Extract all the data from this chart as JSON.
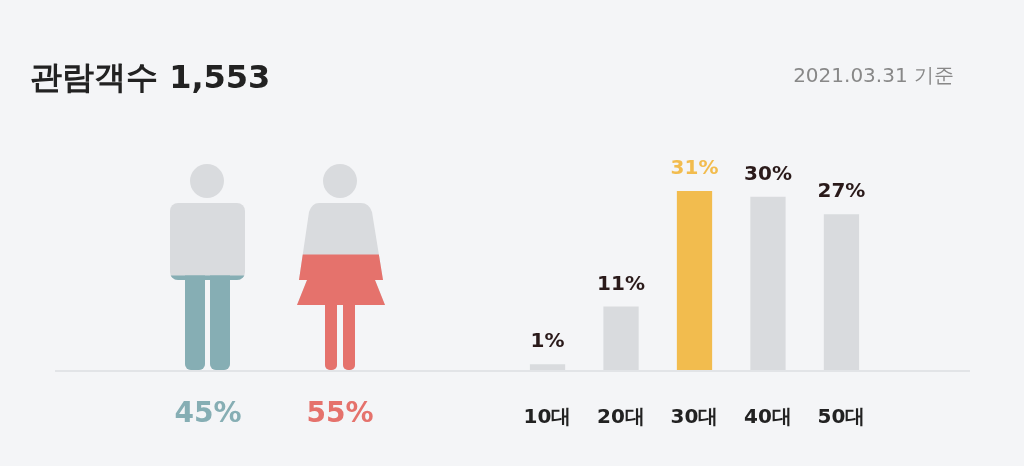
{
  "chart_data": [
    {
      "type": "other",
      "title": "관람객수 1,553",
      "subtitle": "2021.03.31 기준",
      "categories": [
        null,
        null
      ],
      "values": [
        45,
        55
      ],
      "colors": [
        "#86aeb4",
        "#e5726c"
      ],
      "value_labels": [
        "45%",
        "55%"
      ]
    },
    {
      "type": "bar",
      "tick_labels": "x",
      "categories": [
        "10대",
        "20대",
        "30대",
        "40대",
        "50대"
      ],
      "values": [
        1,
        11,
        31,
        30,
        27
      ],
      "colors": [
        "#d9dbde",
        "#d9dbde",
        "#f2bc4e",
        "#d9dbde",
        "#d9dbde"
      ],
      "value_labels": [
        "1%",
        "11%",
        "31%",
        "30%",
        "27%"
      ]
    }
  ]
}
